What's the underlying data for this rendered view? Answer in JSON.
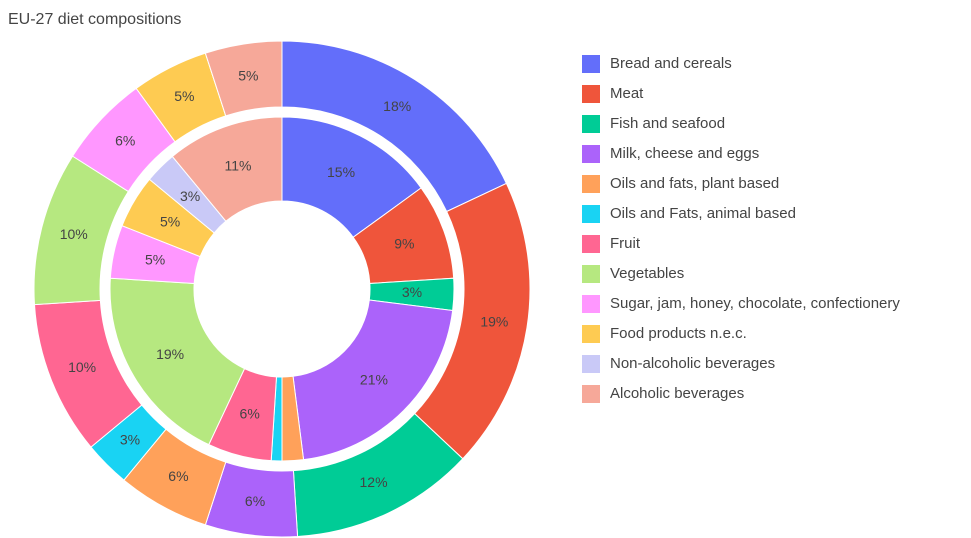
{
  "chart_data": {
    "type": "donut",
    "title": "EU-27 diet compositions",
    "categories": [
      "Bread and cereals",
      "Meat",
      "Fish and seafood",
      "Milk, cheese and eggs",
      "Oils and fats, plant based",
      "Oils and Fats, animal based",
      "Fruit",
      "Vegetables",
      "Sugar, jam, honey, chocolate, confectionery",
      "Food products n.e.c.",
      "Non-alcoholic beverages",
      "Alcoholic beverages"
    ],
    "colors": [
      "#636efa",
      "#ef553b",
      "#00cc96",
      "#ab63fa",
      "#ffa15a",
      "#19d3f3",
      "#ff6692",
      "#b6e880",
      "#ff97ff",
      "#fecb52",
      "#c9c9f7",
      "#f6a899"
    ],
    "series": [
      {
        "values": [
          15,
          9,
          3,
          21,
          2,
          1,
          6,
          19,
          5,
          5,
          3,
          11
        ],
        "value_labels": [
          "15%",
          "9%",
          "3%",
          "21%",
          null,
          null,
          "6%",
          "19%",
          "5%",
          "5%",
          "3%",
          "11%"
        ]
      },
      {
        "values": [
          18,
          19,
          12,
          6,
          6,
          3,
          10,
          10,
          6,
          5,
          0,
          5
        ],
        "value_labels": [
          "18%",
          "19%",
          "12%",
          "6%",
          "6%",
          "3%",
          "10%",
          "10%",
          "6%",
          "5%",
          null,
          "5%"
        ]
      }
    ],
    "legend": "right"
  }
}
